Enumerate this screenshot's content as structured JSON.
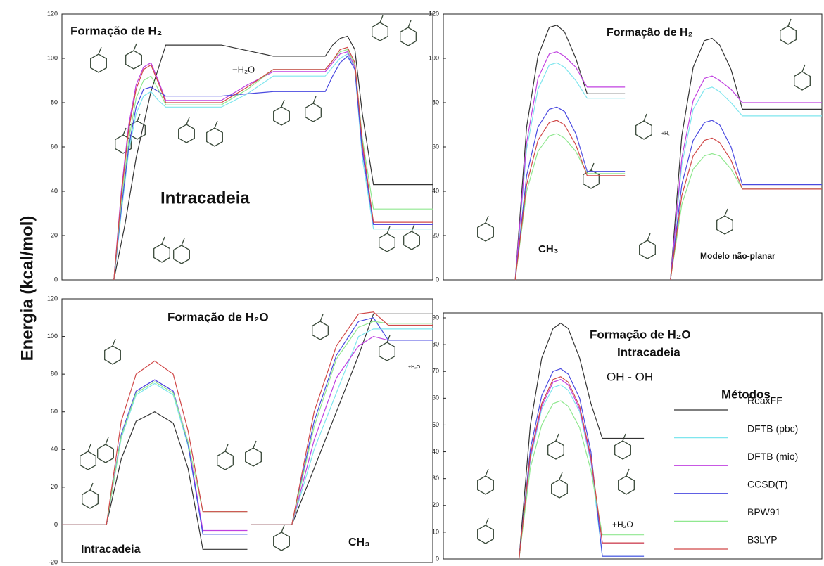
{
  "ylabel": "Energia (kcal/mol)",
  "chart_data": [
    {
      "type": "line",
      "title": "Formação de H₂",
      "ylim": [
        0,
        120
      ],
      "yticks": [
        0,
        20,
        40,
        60,
        80,
        100,
        120
      ],
      "annotations": [
        "−H₂O",
        "Intracadeia"
      ],
      "series": [
        {
          "color": "#333333",
          "x": [
            14,
            17,
            20,
            24,
            28,
            43,
            57,
            71,
            73,
            75,
            77,
            79,
            81,
            84,
            100
          ],
          "values": [
            0,
            25,
            55,
            85,
            106,
            106,
            101,
            101,
            106,
            109,
            110,
            104,
            75,
            43,
            43
          ]
        },
        {
          "color": "#7fe6ee",
          "x": [
            14,
            16,
            18,
            20,
            22,
            24,
            26,
            28,
            43,
            50,
            57,
            71,
            73,
            75,
            77,
            79,
            81,
            84,
            100
          ],
          "values": [
            0,
            30,
            58,
            75,
            83,
            85,
            81,
            78,
            78,
            84,
            92,
            92,
            96,
            100,
            102,
            95,
            55,
            23,
            23
          ]
        },
        {
          "color": "#c040e0",
          "x": [
            14,
            16,
            18,
            20,
            22,
            24,
            26,
            28,
            43,
            50,
            57,
            71,
            73,
            75,
            77,
            79,
            81,
            84,
            100
          ],
          "values": [
            0,
            40,
            70,
            88,
            96,
            98,
            90,
            81,
            81,
            88,
            94,
            94,
            98,
            102,
            103,
            96,
            60,
            25,
            25
          ]
        },
        {
          "color": "#4a4ae0",
          "x": [
            14,
            16,
            18,
            20,
            22,
            24,
            26,
            28,
            43,
            50,
            57,
            71,
            73,
            75,
            77,
            79,
            81,
            84,
            100
          ],
          "values": [
            0,
            32,
            60,
            78,
            86,
            87,
            85,
            83,
            83,
            84,
            85,
            85,
            92,
            98,
            101,
            95,
            58,
            25,
            25
          ]
        },
        {
          "color": "#90e890",
          "x": [
            14,
            16,
            18,
            20,
            22,
            24,
            26,
            28,
            43,
            50,
            57,
            71,
            73,
            75,
            77,
            79,
            81,
            84,
            100
          ],
          "values": [
            0,
            35,
            63,
            82,
            90,
            92,
            86,
            79,
            79,
            86,
            95,
            95,
            99,
            103,
            104,
            97,
            64,
            32,
            32
          ]
        },
        {
          "color": "#d04848",
          "x": [
            14,
            16,
            18,
            20,
            22,
            24,
            26,
            28,
            43,
            50,
            57,
            71,
            73,
            75,
            77,
            79,
            81,
            84,
            100
          ],
          "values": [
            0,
            38,
            68,
            86,
            95,
            97,
            89,
            80,
            80,
            87,
            95,
            95,
            99,
            104,
            105,
            98,
            62,
            26,
            26
          ]
        }
      ]
    },
    {
      "type": "line",
      "title": "Formação de H₂",
      "ylim": [
        0,
        120
      ],
      "yticks": [
        0,
        20,
        40,
        60,
        80,
        100,
        120
      ],
      "annotations": [
        "CH₃",
        "Modelo não-planar",
        "+H₂"
      ],
      "series": [
        {
          "color": "#333333",
          "x": [
            19,
            22,
            25,
            28,
            30,
            32,
            35,
            38,
            48,
            54,
            60,
            63,
            66,
            69,
            71,
            73,
            76,
            79,
            100
          ],
          "values": [
            0,
            69,
            101,
            114,
            115,
            112,
            100,
            84,
            84,
            null,
            0,
            65,
            96,
            108,
            109,
            106,
            95,
            77,
            77
          ]
        },
        {
          "color": "#7fe6ee",
          "x": [
            19,
            22,
            25,
            28,
            30,
            32,
            35,
            38,
            48,
            54,
            60,
            63,
            66,
            69,
            71,
            73,
            76,
            79,
            100
          ],
          "values": [
            0,
            59,
            86,
            97,
            98,
            96,
            90,
            82,
            82,
            null,
            0,
            52,
            77,
            86,
            87,
            85,
            80,
            74,
            74
          ]
        },
        {
          "color": "#c040e0",
          "x": [
            19,
            22,
            25,
            28,
            30,
            32,
            35,
            38,
            48,
            54,
            60,
            63,
            66,
            69,
            71,
            73,
            76,
            79,
            100
          ],
          "values": [
            0,
            62,
            91,
            102,
            103,
            101,
            96,
            87,
            87,
            null,
            0,
            55,
            81,
            91,
            92,
            90,
            86,
            80,
            80
          ]
        },
        {
          "color": "#4a4ae0",
          "x": [
            19,
            22,
            25,
            28,
            30,
            32,
            35,
            38,
            48,
            54,
            60,
            63,
            66,
            69,
            71,
            73,
            76,
            79,
            100
          ],
          "values": [
            0,
            47,
            69,
            77,
            78,
            76,
            66,
            49,
            49,
            null,
            0,
            43,
            63,
            71,
            72,
            70,
            60,
            43,
            43
          ]
        },
        {
          "color": "#90e890",
          "x": [
            19,
            22,
            25,
            28,
            30,
            32,
            35,
            38,
            48,
            54,
            60,
            63,
            66,
            69,
            71,
            73,
            76,
            79,
            100
          ],
          "values": [
            0,
            40,
            58,
            65,
            66,
            64,
            58,
            48,
            48,
            null,
            0,
            34,
            50,
            56,
            57,
            56,
            50,
            41,
            41
          ]
        },
        {
          "color": "#d04848",
          "x": [
            19,
            22,
            25,
            28,
            30,
            32,
            35,
            38,
            48,
            54,
            60,
            63,
            66,
            69,
            71,
            73,
            76,
            79,
            100
          ],
          "values": [
            0,
            43,
            63,
            71,
            72,
            70,
            61,
            47,
            47,
            null,
            0,
            38,
            56,
            63,
            64,
            62,
            54,
            41,
            41
          ]
        }
      ]
    },
    {
      "type": "line",
      "title": "Formação de H₂O",
      "ylim": [
        -20,
        120
      ],
      "yticks": [
        -20,
        0,
        20,
        40,
        60,
        80,
        100,
        120
      ],
      "annotations": [
        "Intracadeia",
        "CH₃",
        "+H₂O"
      ],
      "series": [
        {
          "color": "#333333",
          "x": [
            0,
            12,
            16,
            20,
            25,
            30,
            34,
            38,
            50,
            50.5,
            51,
            62,
            68,
            74,
            80,
            84,
            88,
            100
          ],
          "values": [
            0,
            0,
            35,
            55,
            60,
            54,
            30,
            -13,
            -13,
            null,
            0,
            0,
            30,
            60,
            90,
            112,
            112,
            112
          ]
        },
        {
          "color": "#7fe6ee",
          "x": [
            0,
            12,
            16,
            20,
            25,
            30,
            34,
            38,
            50,
            50.5,
            51,
            62,
            68,
            74,
            80,
            84,
            88,
            100
          ],
          "values": [
            0,
            0,
            46,
            69,
            75,
            69,
            42,
            -5,
            -5,
            null,
            0,
            0,
            40,
            70,
            100,
            104,
            104,
            104
          ]
        },
        {
          "color": "#c040e0",
          "x": [
            0,
            12,
            16,
            20,
            25,
            30,
            34,
            38,
            50,
            50.5,
            51,
            62,
            68,
            74,
            80,
            84,
            88,
            100
          ],
          "values": [
            0,
            0,
            48,
            71,
            77,
            71,
            44,
            -3,
            -3,
            null,
            0,
            0,
            45,
            78,
            95,
            100,
            98,
            98
          ]
        },
        {
          "color": "#4a4ae0",
          "x": [
            0,
            12,
            16,
            20,
            25,
            30,
            34,
            38,
            50,
            50.5,
            51,
            62,
            68,
            74,
            80,
            84,
            88,
            100
          ],
          "values": [
            0,
            0,
            48,
            71,
            77,
            71,
            43,
            -5,
            -5,
            null,
            0,
            0,
            55,
            90,
            108,
            110,
            98,
            98
          ]
        },
        {
          "color": "#90e890",
          "x": [
            0,
            12,
            16,
            20,
            25,
            30,
            34,
            38,
            50,
            50.5,
            51,
            62,
            68,
            74,
            80,
            84,
            88,
            100
          ],
          "values": [
            0,
            0,
            47,
            70,
            76,
            70,
            44,
            7,
            7,
            null,
            0,
            0,
            52,
            88,
            105,
            108,
            107,
            107
          ]
        },
        {
          "color": "#d04848",
          "x": [
            0,
            12,
            16,
            20,
            25,
            30,
            34,
            38,
            50,
            50.5,
            51,
            62,
            68,
            74,
            80,
            84,
            88,
            100
          ],
          "values": [
            0,
            0,
            55,
            80,
            87,
            80,
            50,
            7,
            7,
            null,
            0,
            0,
            60,
            95,
            112,
            113,
            106,
            106
          ]
        }
      ]
    },
    {
      "type": "line",
      "title": "Formação de H₂O",
      "ylim": [
        0,
        90
      ],
      "yticks": [
        0,
        10,
        20,
        30,
        40,
        50,
        60,
        70,
        80,
        90
      ],
      "annotations": [
        "Intracadeia",
        "OH - OH",
        "+H₂O"
      ],
      "legend": "right",
      "legend_title": "Métodos",
      "series": [
        {
          "name": "ReaxFF",
          "color": "#333333",
          "x": [
            20,
            23,
            26,
            29,
            31,
            33,
            36,
            39,
            42,
            53
          ],
          "values": [
            0,
            50,
            75,
            86,
            88,
            86,
            75,
            58,
            45,
            45
          ]
        },
        {
          "name": "DFTB (pbc)",
          "color": "#7fe6ee",
          "x": [
            20,
            23,
            26,
            29,
            31,
            33,
            36,
            39,
            42,
            53
          ],
          "values": [
            0,
            37,
            56,
            64,
            65,
            63,
            55,
            36,
            1,
            1
          ]
        },
        {
          "name": "DFTB (mio)",
          "color": "#c040e0",
          "x": [
            20,
            23,
            26,
            29,
            31,
            33,
            36,
            39,
            42,
            53
          ],
          "values": [
            0,
            38,
            57,
            66,
            67,
            65,
            56,
            37,
            6,
            6
          ]
        },
        {
          "name": "CCSD(T)",
          "color": "#4a4ae0",
          "x": [
            20,
            23,
            26,
            29,
            31,
            33,
            36,
            39,
            42,
            53
          ],
          "values": [
            0,
            41,
            61,
            70,
            71,
            69,
            60,
            40,
            1,
            1
          ]
        },
        {
          "name": "BPW91",
          "color": "#90e890",
          "x": [
            20,
            23,
            26,
            29,
            31,
            33,
            36,
            39,
            42,
            53
          ],
          "values": [
            0,
            34,
            50,
            58,
            59,
            57,
            49,
            33,
            9,
            9
          ]
        },
        {
          "name": "B3LYP",
          "color": "#d04848",
          "x": [
            20,
            23,
            26,
            29,
            31,
            33,
            36,
            39,
            42,
            53
          ],
          "values": [
            0,
            39,
            58,
            67,
            68,
            66,
            57,
            38,
            6,
            6
          ]
        }
      ]
    }
  ]
}
